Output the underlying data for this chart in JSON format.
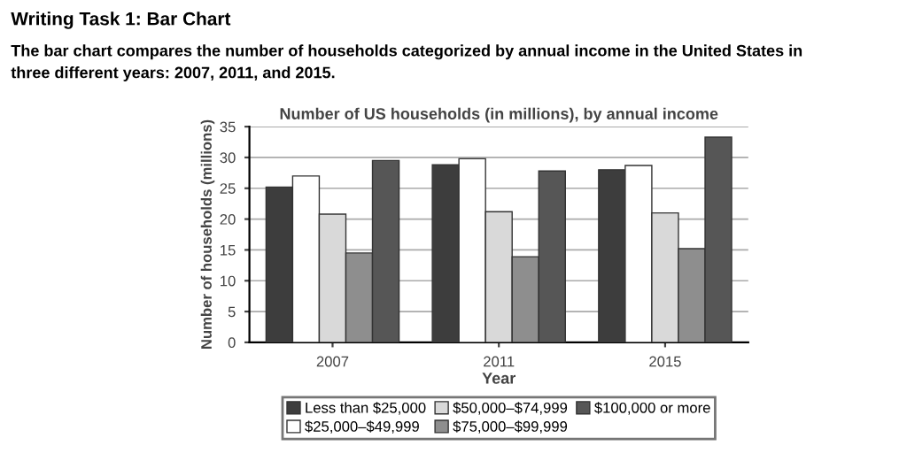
{
  "chart_data": {
    "type": "bar",
    "title": "Number of US households (in millions), by annual income",
    "xlabel": "Year",
    "ylabel": "Number of households (millions)",
    "annotations": [
      "Writing Task 1: Bar Chart",
      "The bar chart compares the number of households categorized by annual income in the United States in three different years: 2007, 2011, and 2015."
    ],
    "categories": [
      "2007",
      "2011",
      "2015"
    ],
    "series": [
      {
        "name": "Less than $25,000",
        "color": "#3d3d3d",
        "values": [
          25.2,
          28.8,
          28.0
        ]
      },
      {
        "name": "$25,000–$49,999",
        "color": "#ffffff",
        "values": [
          27.0,
          29.8,
          28.7
        ]
      },
      {
        "name": "$50,000–$74,999",
        "color": "#d9d9d9",
        "values": [
          20.8,
          21.2,
          21.0
        ]
      },
      {
        "name": "$75,000–$99,999",
        "color": "#8e8e8e",
        "values": [
          14.5,
          13.9,
          15.2
        ]
      },
      {
        "name": "$100,000 or more",
        "color": "#565656",
        "values": [
          29.5,
          27.8,
          33.3
        ]
      }
    ],
    "ylim": [
      0,
      35
    ],
    "yticks": [
      0,
      5,
      10,
      15,
      20,
      25,
      30,
      35
    ],
    "grid": "y",
    "legend": "bottom"
  }
}
